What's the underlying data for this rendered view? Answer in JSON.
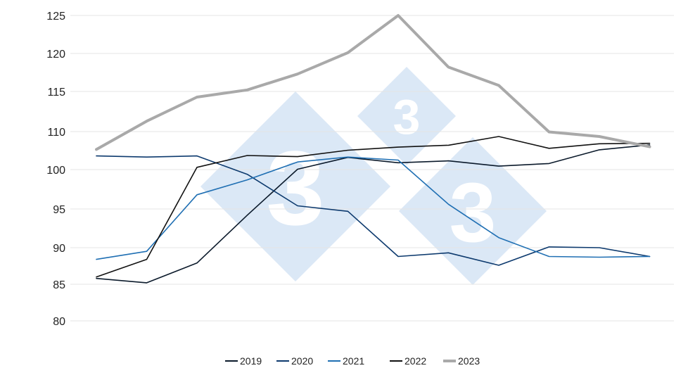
{
  "chart_data": {
    "type": "line",
    "title": "",
    "xlabel": "",
    "ylabel": "",
    "ylim": [
      80,
      125
    ],
    "yticks": [
      80,
      85,
      90,
      95,
      100,
      110,
      115,
      120,
      125
    ],
    "grid": "horizontal",
    "legend": "bottom",
    "x": [
      1,
      2,
      3,
      4,
      5,
      6,
      7,
      8,
      9,
      10,
      11,
      12
    ],
    "series": [
      {
        "name": "2019",
        "color": "#0b1a2b",
        "values": [
          85.8,
          85.2,
          87.9,
          94.2,
          100.1,
          103.2,
          101.8,
          102.3,
          100.9,
          101.6,
          105.2,
          106.5
        ]
      },
      {
        "name": "2020",
        "color": "#0d3a6e",
        "values": [
          103.6,
          103.3,
          103.6,
          99.4,
          95.4,
          94.7,
          88.8,
          89.3,
          87.6,
          90.1,
          90.0,
          88.8
        ]
      },
      {
        "name": "2021",
        "color": "#1f6fb3",
        "values": [
          88.4,
          89.5,
          96.8,
          98.7,
          102.0,
          103.3,
          102.5,
          95.6,
          91.3,
          88.8,
          88.7,
          88.8
        ]
      },
      {
        "name": "2022",
        "color": "#111111",
        "values": [
          86.0,
          88.4,
          100.6,
          103.7,
          103.4,
          105.1,
          105.9,
          106.4,
          108.7,
          105.6,
          106.8,
          106.9
        ]
      },
      {
        "name": "2023",
        "color": "#a9a9a9",
        "values": [
          105.3,
          111.3,
          114.3,
          115.2,
          117.3,
          120.1,
          125.1,
          118.2,
          115.8,
          109.9,
          108.7,
          106.0
        ]
      }
    ]
  }
}
